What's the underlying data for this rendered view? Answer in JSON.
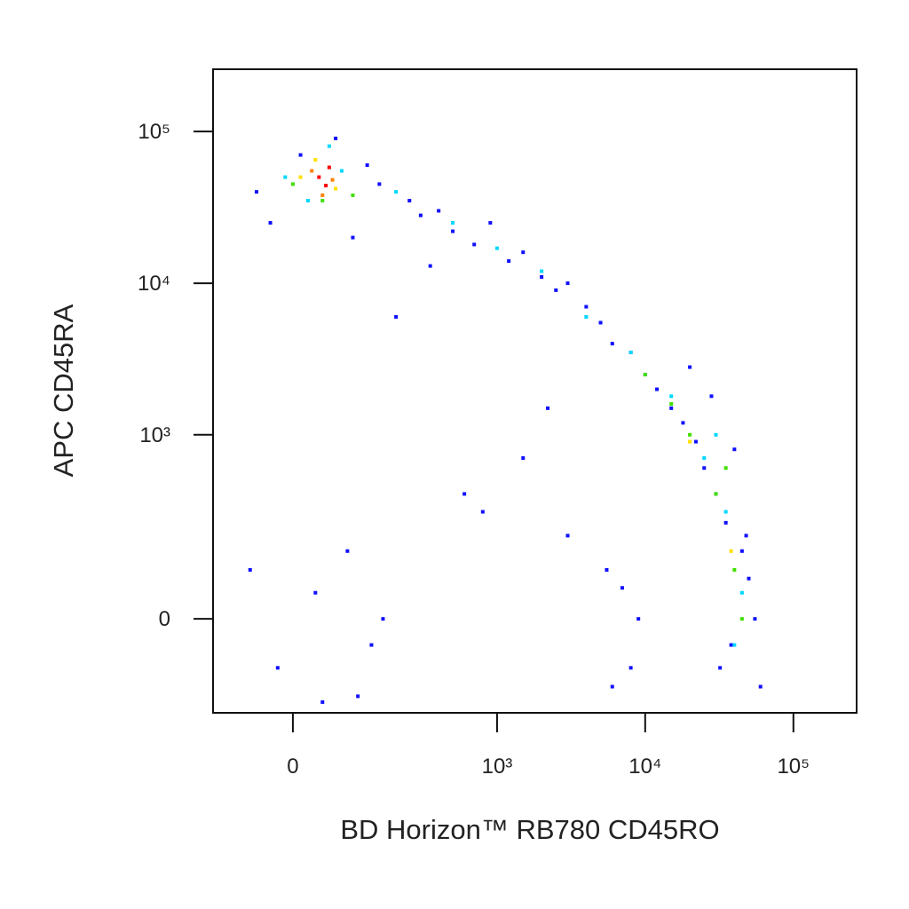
{
  "chart_data": {
    "type": "scatter",
    "x_label": "BD Horizon™ RB780 CD45RO",
    "y_label": "APC CD45RA",
    "xscale": "biexponential",
    "yscale": "biexponential",
    "xlim": [
      -133,
      267000
    ],
    "ylim": [
      -241,
      257000
    ],
    "xticks": [
      0,
      {
        "value": 1000,
        "label": "10³"
      },
      {
        "value": 10000,
        "label": "10⁴"
      },
      {
        "value": 100000,
        "label": "10⁵"
      }
    ],
    "yticks": [
      0,
      {
        "value": 1000,
        "label": "10³"
      },
      {
        "value": 10000,
        "label": "10⁴"
      },
      {
        "value": 100000,
        "label": "10⁵"
      }
    ],
    "series": [
      {
        "color": "#1010ff",
        "x": [
          -50,
          10,
          60,
          120,
          -30,
          90,
          150,
          250,
          300,
          400,
          500,
          700,
          900,
          1200,
          1500,
          2000,
          2500,
          3000,
          4000,
          5000,
          6000,
          8000,
          10000,
          12000,
          15000,
          18000,
          22000,
          25000,
          30000,
          35000,
          45000,
          50000,
          55000,
          20000,
          28000,
          40000,
          48000,
          38000,
          32000,
          60000,
          -20,
          30,
          80,
          130,
          160,
          -60,
          6000,
          7000,
          8000,
          9000,
          5500,
          800,
          1500,
          3000,
          200,
          40,
          100,
          2200,
          600,
          350
        ],
        "y": [
          40000,
          70000,
          90000,
          60000,
          25000,
          20000,
          45000,
          35000,
          28000,
          30000,
          22000,
          18000,
          25000,
          14000,
          16000,
          11000,
          9000,
          10000,
          7000,
          5500,
          4000,
          3500,
          2500,
          2000,
          1500,
          1200,
          900,
          600,
          400,
          250,
          150,
          80,
          0,
          2800,
          1800,
          800,
          200,
          -50,
          -100,
          -150,
          -100,
          50,
          150,
          -50,
          0,
          100,
          -150,
          60,
          -100,
          0,
          100,
          300,
          700,
          200,
          6000,
          -200,
          -180,
          1500,
          400,
          13000
        ]
      },
      {
        "color": "#00d8ff",
        "x": [
          20,
          70,
          200,
          500,
          1000,
          2000,
          4000,
          8000,
          15000,
          25000,
          35000,
          45000,
          40000,
          30000,
          50,
          -10
        ],
        "y": [
          35000,
          55000,
          40000,
          25000,
          17000,
          12000,
          6000,
          3500,
          1800,
          700,
          300,
          50,
          -50,
          1000,
          80000,
          50000
        ]
      },
      {
        "color": "#40e000",
        "x": [
          0,
          40,
          90,
          10000,
          15000,
          20000,
          30000,
          40000,
          45000,
          35000
        ],
        "y": [
          45000,
          35000,
          38000,
          2500,
          1600,
          1000,
          400,
          100,
          0,
          600
        ]
      },
      {
        "color": "#ffe000",
        "x": [
          10,
          60,
          30,
          20000,
          38000
        ],
        "y": [
          50000,
          42000,
          65000,
          900,
          150
        ]
      },
      {
        "color": "#ff8000",
        "x": [
          25,
          55,
          40
        ],
        "y": [
          55000,
          48000,
          38000
        ]
      },
      {
        "color": "#ff0000",
        "x": [
          35,
          50,
          45
        ],
        "y": [
          50000,
          58000,
          44000
        ]
      }
    ]
  }
}
